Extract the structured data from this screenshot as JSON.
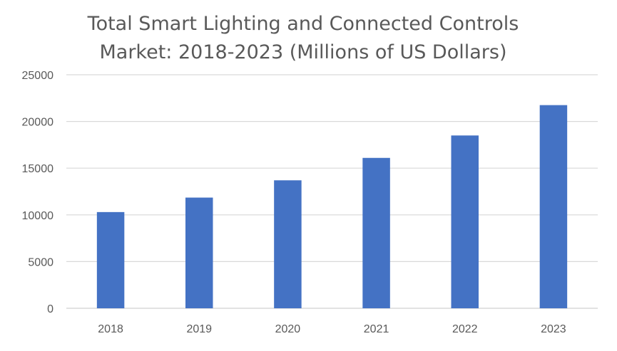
{
  "chart_data": {
    "type": "bar",
    "title_lines": [
      "Total Smart Lighting and Connected Controls",
      "Market: 2018-2023 (Millions of US Dollars)"
    ],
    "categories": [
      "2018",
      "2019",
      "2020",
      "2021",
      "2022",
      "2023"
    ],
    "values": [
      10300,
      11850,
      13700,
      16100,
      18500,
      21750
    ],
    "ylim": [
      0,
      25000
    ],
    "yticks": [
      0,
      5000,
      10000,
      15000,
      20000,
      25000
    ],
    "ytick_labels": [
      "0",
      "5000",
      "10000",
      "15000",
      "20000",
      "25000"
    ],
    "grid": true,
    "legend": "none",
    "bar_color": "#4472c4"
  }
}
